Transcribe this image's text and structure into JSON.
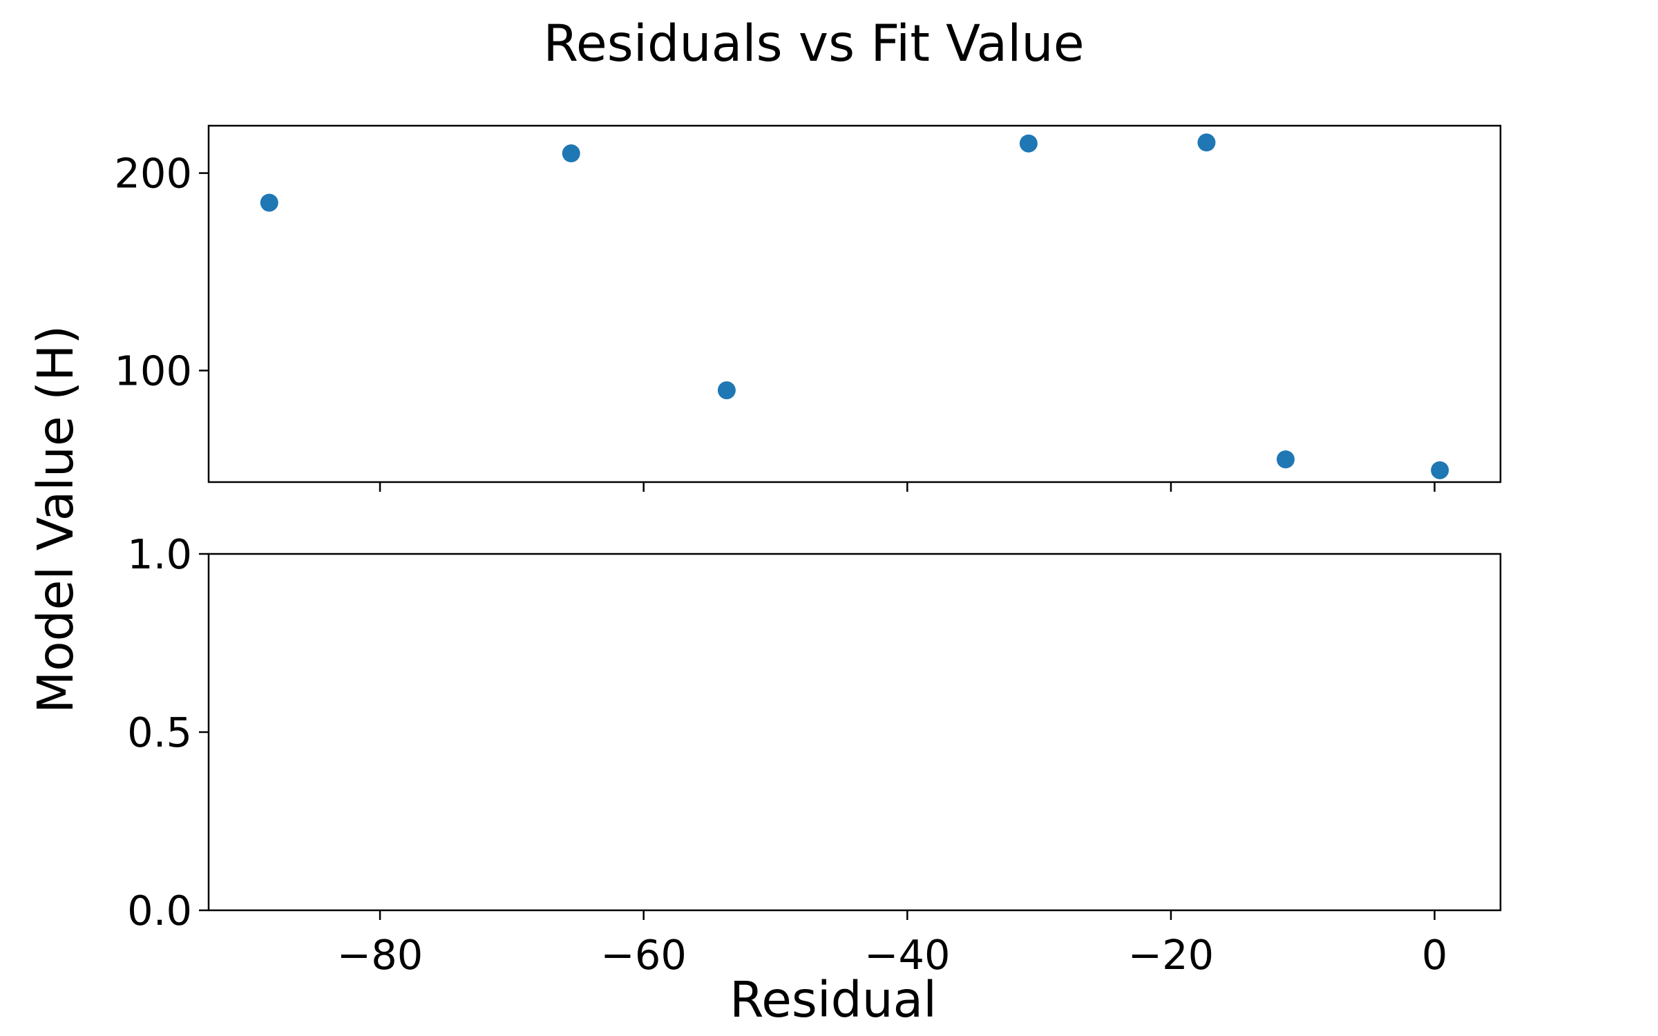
{
  "chart_data": {
    "title": "Residuals vs Fit Value",
    "xlabel": "Residual",
    "ylabel": "Model Value (H)",
    "shared_x": {
      "xlim": [
        -93,
        5
      ],
      "ticks": [
        -80,
        -60,
        -40,
        -20,
        0
      ],
      "tick_labels": [
        "−80",
        "−60",
        "−40",
        "−20",
        "0"
      ]
    },
    "panels": [
      {
        "type": "scatter",
        "ylim": [
          43.5,
          224
        ],
        "yticks": [
          100,
          200
        ],
        "ytick_labels": [
          "100",
          "200"
        ],
        "show_x_tick_labels": false,
        "color": "#1f77b4",
        "points": [
          {
            "x": -88.4,
            "y": 185
          },
          {
            "x": -65.5,
            "y": 210
          },
          {
            "x": -53.7,
            "y": 90
          },
          {
            "x": -30.8,
            "y": 215
          },
          {
            "x": -17.3,
            "y": 215.5
          },
          {
            "x": -11.3,
            "y": 55
          },
          {
            "x": 0.4,
            "y": 49.5
          }
        ]
      },
      {
        "type": "scatter",
        "ylim": [
          0,
          1
        ],
        "yticks": [
          0,
          0.5,
          1
        ],
        "ytick_labels": [
          "0.0",
          "0.5",
          "1.0"
        ],
        "show_x_tick_labels": true,
        "points": []
      }
    ]
  }
}
